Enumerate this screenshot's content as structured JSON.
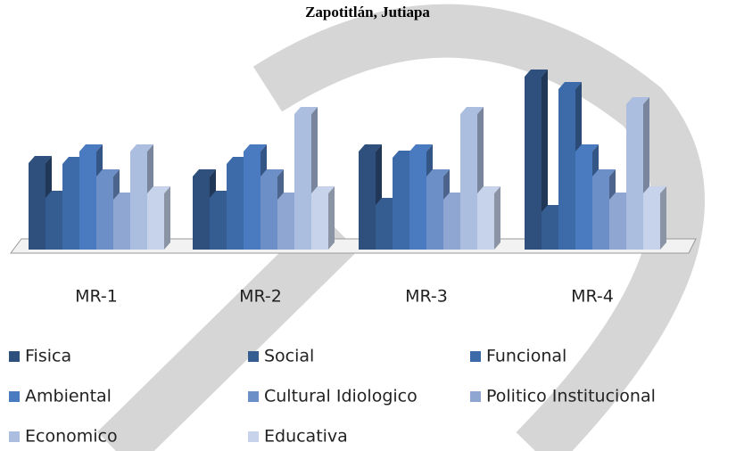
{
  "chart_data": {
    "type": "bar3d",
    "title": "Zapotitlán, Jutiapa",
    "categories": [
      "MR-1",
      "MR-2",
      "MR-3",
      "MR-4"
    ],
    "series": [
      {
        "name": "Fisica",
        "color": "#2f4f7d",
        "values": [
          97,
          82,
          110,
          194
        ]
      },
      {
        "name": "Social",
        "color": "#365d92",
        "values": [
          58,
          58,
          50,
          42
        ]
      },
      {
        "name": "Funcional",
        "color": "#3d6aa8",
        "values": [
          96,
          96,
          103,
          180
        ]
      },
      {
        "name": "Ambiental",
        "color": "#4a7bc0",
        "values": [
          110,
          110,
          110,
          110
        ]
      },
      {
        "name": "Cultural Idiologico",
        "color": "#6c8fc8",
        "values": [
          82,
          82,
          82,
          82
        ]
      },
      {
        "name": "Politico Institucional",
        "color": "#8ea6d1",
        "values": [
          56,
          56,
          56,
          56
        ]
      },
      {
        "name": "Economico",
        "color": "#abbedf",
        "values": [
          110,
          152,
          152,
          163
        ]
      },
      {
        "name": "Educativa",
        "color": "#c7d3ea",
        "values": [
          63,
          63,
          63,
          63
        ]
      }
    ]
  }
}
